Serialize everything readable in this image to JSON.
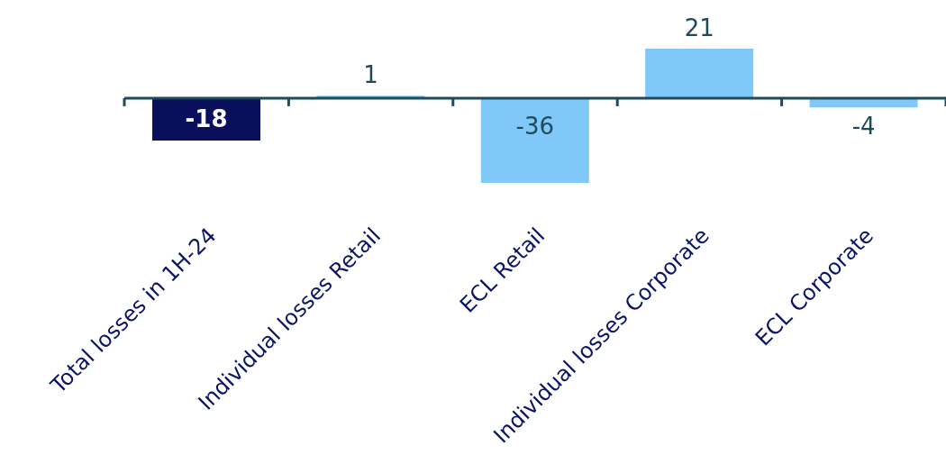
{
  "chart_data": {
    "type": "bar",
    "categories": [
      "Total losses in 1H-24",
      "Individual losses Retail",
      "ECL Retail",
      "Individual losses Corporate",
      "ECL Corporate"
    ],
    "values": [
      -18,
      1,
      -36,
      21,
      -4
    ],
    "colors": [
      "#0a0f5c",
      "#80c8f8",
      "#80c8f8",
      "#80c8f8",
      "#80c8f8"
    ],
    "data_labels": true
  }
}
